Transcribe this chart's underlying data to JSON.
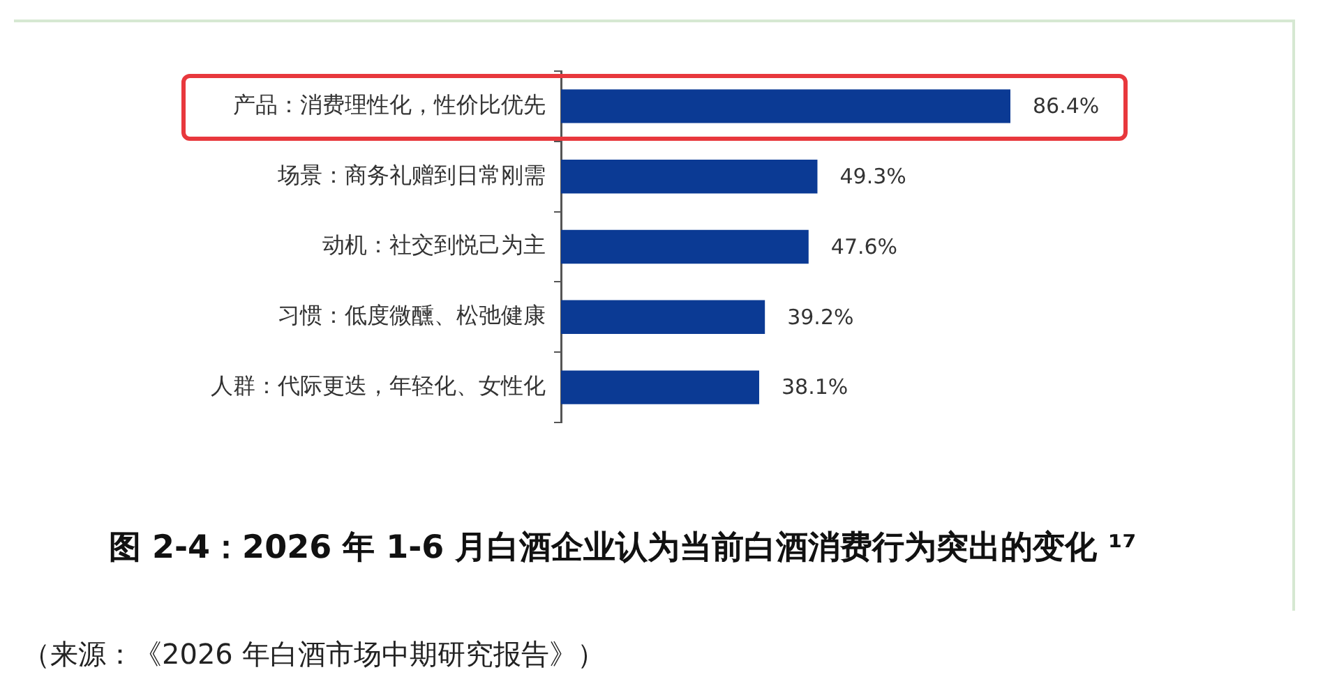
{
  "chart_data": {
    "type": "bar",
    "orientation": "horizontal",
    "title": "图 2-4：2026 年 1-6 月白酒企业认为当前白酒消费行为突出的变化 ¹⁷",
    "categories": [
      "产品：消费理性化，性价比优先",
      "场景：商务礼赠到日常刚需",
      "动机：社交到悦己为主",
      "习惯：低度微醺、松弛健康",
      "人群：代际更迭，年轻化、女性化"
    ],
    "values": [
      86.4,
      49.3,
      47.6,
      39.2,
      38.1
    ],
    "value_labels": [
      "86.4%",
      "49.3%",
      "47.6%",
      "39.2%",
      "38.1%"
    ],
    "color": "#0b3a94",
    "tick_labels": "y",
    "annotations": [
      "（来源：《2026 年白酒市场中期研究报告》）"
    ]
  }
}
